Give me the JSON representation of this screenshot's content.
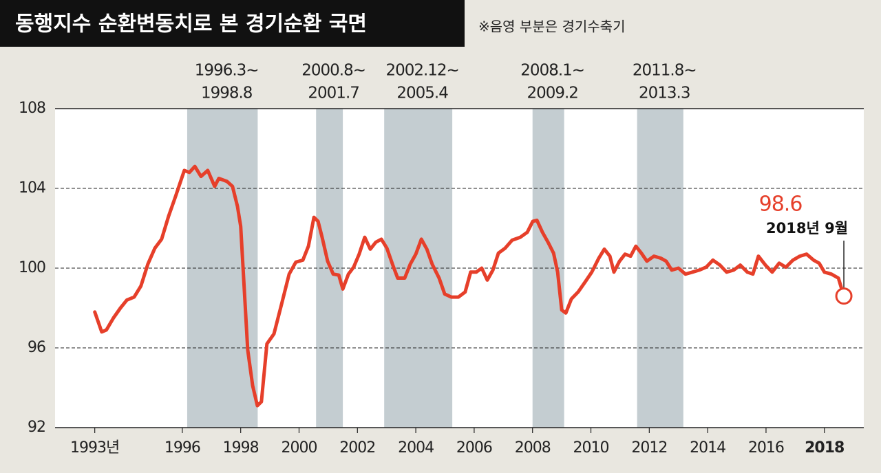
{
  "chart_data": {
    "type": "line",
    "title": "동행지수 순환변동치로 본 경기순환 국면",
    "subtitle": "※음영 부분은 경기수축기",
    "xlim": [
      1991.64,
      2019.35
    ],
    "ylim": [
      92,
      108
    ],
    "yticks": [
      92,
      96,
      100,
      104,
      108
    ],
    "xticks": [
      {
        "value": 1993,
        "label": "1993년"
      },
      1996,
      1998,
      2000,
      2002,
      2004,
      2006,
      2008,
      2010,
      2012,
      2014,
      2016,
      2018
    ],
    "grid": true,
    "recessions": [
      {
        "label": [
          "1996.3~",
          "1998.8"
        ],
        "start": 1996.167,
        "end": 1998.583
      },
      {
        "label": [
          "2000.8~",
          "2001.7"
        ],
        "start": 2000.583,
        "end": 2001.5
      },
      {
        "label": [
          "2002.12~",
          "2005.4"
        ],
        "start": 2002.917,
        "end": 2005.25
      },
      {
        "label": [
          "2008.1~",
          "2009.2"
        ],
        "start": 2008.0,
        "end": 2009.083
      },
      {
        "label": [
          "2011.8~",
          "2013.3"
        ],
        "start": 2011.583,
        "end": 2013.167
      }
    ],
    "series": [
      {
        "color": "#e63f2a",
        "x": [
          1993.0,
          1993.24,
          1993.4,
          1993.64,
          1993.88,
          1994.1,
          1994.35,
          1994.58,
          1994.82,
          1995.06,
          1995.29,
          1995.53,
          1995.77,
          1995.93,
          1996.07,
          1996.24,
          1996.43,
          1996.64,
          1996.87,
          1997.11,
          1997.25,
          1997.53,
          1997.72,
          1997.89,
          1998.0,
          1998.12,
          1998.24,
          1998.41,
          1998.57,
          1998.71,
          1998.9,
          1999.14,
          1999.42,
          1999.66,
          1999.89,
          2000.13,
          2000.32,
          2000.51,
          2000.65,
          2000.79,
          2000.98,
          2001.17,
          2001.36,
          2001.5,
          2001.69,
          2001.87,
          2002.06,
          2002.25,
          2002.44,
          2002.63,
          2002.82,
          2003.01,
          2003.2,
          2003.38,
          2003.62,
          2003.81,
          2004.0,
          2004.19,
          2004.38,
          2004.56,
          2004.8,
          2004.99,
          2005.22,
          2005.46,
          2005.69,
          2005.88,
          2006.07,
          2006.26,
          2006.45,
          2006.64,
          2006.83,
          2007.06,
          2007.3,
          2007.58,
          2007.82,
          2008.01,
          2008.15,
          2008.34,
          2008.53,
          2008.72,
          2008.86,
          2009.0,
          2009.14,
          2009.33,
          2009.56,
          2009.8,
          2010.03,
          2010.27,
          2010.46,
          2010.65,
          2010.79,
          2010.98,
          2011.17,
          2011.36,
          2011.54,
          2011.73,
          2011.92,
          2012.16,
          2012.39,
          2012.58,
          2012.77,
          2013.0,
          2013.24,
          2013.48,
          2013.71,
          2013.95,
          2014.18,
          2014.42,
          2014.65,
          2014.89,
          2015.12,
          2015.36,
          2015.55,
          2015.74,
          2015.98,
          2016.21,
          2016.45,
          2016.68,
          2016.92,
          2017.16,
          2017.39,
          2017.63,
          2017.82,
          2018.0,
          2018.24,
          2018.48,
          2018.667
        ],
        "values": [
          97.8,
          96.8,
          96.9,
          97.5,
          98.0,
          98.4,
          98.55,
          99.1,
          100.2,
          101.0,
          101.45,
          102.6,
          103.6,
          104.3,
          104.9,
          104.8,
          105.1,
          104.6,
          104.9,
          104.1,
          104.5,
          104.35,
          104.1,
          103.1,
          102.1,
          99.0,
          95.9,
          94.1,
          93.1,
          93.3,
          96.2,
          96.7,
          98.3,
          99.7,
          100.3,
          100.4,
          101.1,
          102.55,
          102.35,
          101.55,
          100.35,
          99.7,
          99.65,
          98.95,
          99.7,
          100.05,
          100.7,
          101.55,
          100.95,
          101.3,
          101.45,
          101.0,
          100.2,
          99.5,
          99.5,
          100.2,
          100.7,
          101.45,
          100.95,
          100.2,
          99.5,
          98.7,
          98.55,
          98.55,
          98.8,
          99.8,
          99.8,
          100.0,
          99.4,
          99.9,
          100.75,
          101.0,
          101.4,
          101.55,
          101.8,
          102.35,
          102.4,
          101.8,
          101.3,
          100.75,
          99.8,
          97.9,
          97.75,
          98.45,
          98.8,
          99.3,
          99.8,
          100.5,
          100.95,
          100.6,
          99.8,
          100.35,
          100.7,
          100.6,
          101.1,
          100.75,
          100.35,
          100.6,
          100.5,
          100.35,
          99.9,
          100.0,
          99.7,
          99.8,
          99.9,
          100.05,
          100.4,
          100.15,
          99.8,
          99.9,
          100.15,
          99.8,
          99.7,
          100.6,
          100.15,
          99.8,
          100.25,
          100.05,
          100.4,
          100.6,
          100.7,
          100.4,
          100.25,
          99.8,
          99.7,
          99.5,
          98.6
        ]
      }
    ],
    "annotation": {
      "value_label": "98.6",
      "text": "2018년 9월"
    }
  }
}
